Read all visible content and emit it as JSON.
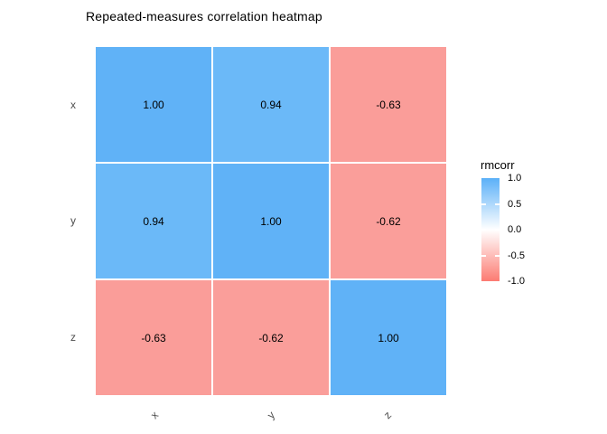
{
  "chart_data": {
    "type": "heatmap",
    "title": "Repeated-measures correlation heatmap",
    "x_categories": [
      "x",
      "y",
      "z"
    ],
    "y_categories": [
      "x",
      "y",
      "z"
    ],
    "values": [
      [
        1.0,
        0.94,
        -0.63
      ],
      [
        0.94,
        1.0,
        -0.62
      ],
      [
        -0.63,
        -0.62,
        1.0
      ]
    ],
    "cell_labels": [
      [
        "1.00",
        "0.94",
        "-0.63"
      ],
      [
        "0.94",
        "1.00",
        "-0.62"
      ],
      [
        "-0.63",
        "-0.62",
        "1.00"
      ]
    ],
    "cell_colors": [
      [
        "#60B2F7",
        "#6BB9F8",
        "#FA9D99"
      ],
      [
        "#6BB9F8",
        "#60B2F7",
        "#FA9E9A"
      ],
      [
        "#FA9D99",
        "#FA9E9A",
        "#60B2F7"
      ]
    ],
    "xlabel": "",
    "ylabel": "",
    "grid": false,
    "legend": {
      "title": "rmcorr",
      "position": "right",
      "orientation": "vertical",
      "range": [
        -1.0,
        1.0
      ],
      "tick_labels": [
        "1.0",
        "0.5",
        "0.0",
        "-0.5",
        "-1.0"
      ],
      "tick_values": [
        1.0,
        0.5,
        0.0,
        -0.5,
        -1.0
      ],
      "gradient_high": "#5BB0F8",
      "gradient_mid": "#FFFFFF",
      "gradient_low": "#FC7B72"
    },
    "colors": {
      "background": "#FFFFFF",
      "axis_text": "#4D4D4D",
      "cell_text": "#000000",
      "grid_gap": "#FFFFFF"
    }
  }
}
